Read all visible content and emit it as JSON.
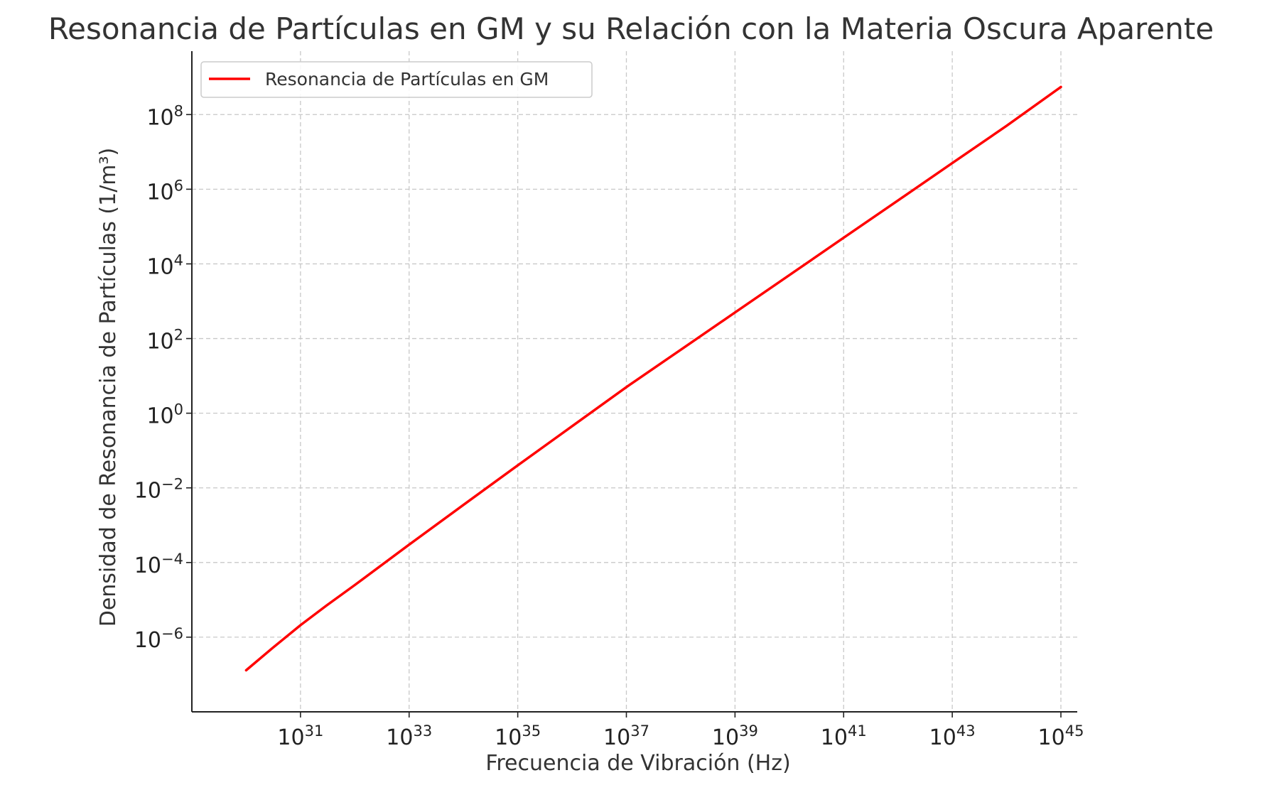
{
  "chart_data": {
    "type": "line",
    "title": "Resonancia de Partículas en GM y su Relación con la Materia Oscura Aparente",
    "xlabel": "Frecuencia de Vibración (Hz)",
    "ylabel": "Densidad de Resonancia de Partículas (1/m³)",
    "x_scale": "log",
    "y_scale": "log",
    "xlim": [
      1e+29,
      2e+45
    ],
    "ylim": [
      1e-08,
      5000000000.0
    ],
    "x_ticks": [
      {
        "value": 1e+31,
        "base": "10",
        "exp": "31"
      },
      {
        "value": 1e+33,
        "base": "10",
        "exp": "33"
      },
      {
        "value": 1e+35,
        "base": "10",
        "exp": "35"
      },
      {
        "value": 1e+37,
        "base": "10",
        "exp": "37"
      },
      {
        "value": 1e+39,
        "base": "10",
        "exp": "39"
      },
      {
        "value": 1e+41,
        "base": "10",
        "exp": "41"
      },
      {
        "value": 1e+43,
        "base": "10",
        "exp": "43"
      },
      {
        "value": 1e+45,
        "base": "10",
        "exp": "45"
      }
    ],
    "y_ticks": [
      {
        "value": 1e-06,
        "base": "10",
        "exp": "−6"
      },
      {
        "value": 0.0001,
        "base": "10",
        "exp": "−4"
      },
      {
        "value": 0.01,
        "base": "10",
        "exp": "−2"
      },
      {
        "value": 1.0,
        "base": "10",
        "exp": "0"
      },
      {
        "value": 100.0,
        "base": "10",
        "exp": "2"
      },
      {
        "value": 10000.0,
        "base": "10",
        "exp": "4"
      },
      {
        "value": 1000000.0,
        "base": "10",
        "exp": "6"
      },
      {
        "value": 100000000.0,
        "base": "10",
        "exp": "8"
      }
    ],
    "grid": true,
    "legend_position": "top-left",
    "series": [
      {
        "name": "Resonancia de Partículas en GM",
        "color": "#ff0000",
        "x": [
          1e+30,
          3e+30,
          1e+31,
          3e+31,
          1e+32,
          1e+33,
          1e+34,
          1e+35,
          1e+36,
          1e+37,
          1e+38,
          1e+39,
          1e+40,
          1e+41,
          1e+42,
          1e+43,
          1e+44,
          1e+45
        ],
        "y": [
          1.3e-07,
          5e-07,
          2.1e-06,
          7e-06,
          2.5e-05,
          0.0003,
          0.0035,
          0.04,
          0.45,
          5.0,
          50.0,
          500.0,
          5000.0,
          50000.0,
          500000.0,
          5000000.0,
          50000000.0,
          550000000.0
        ]
      }
    ]
  }
}
